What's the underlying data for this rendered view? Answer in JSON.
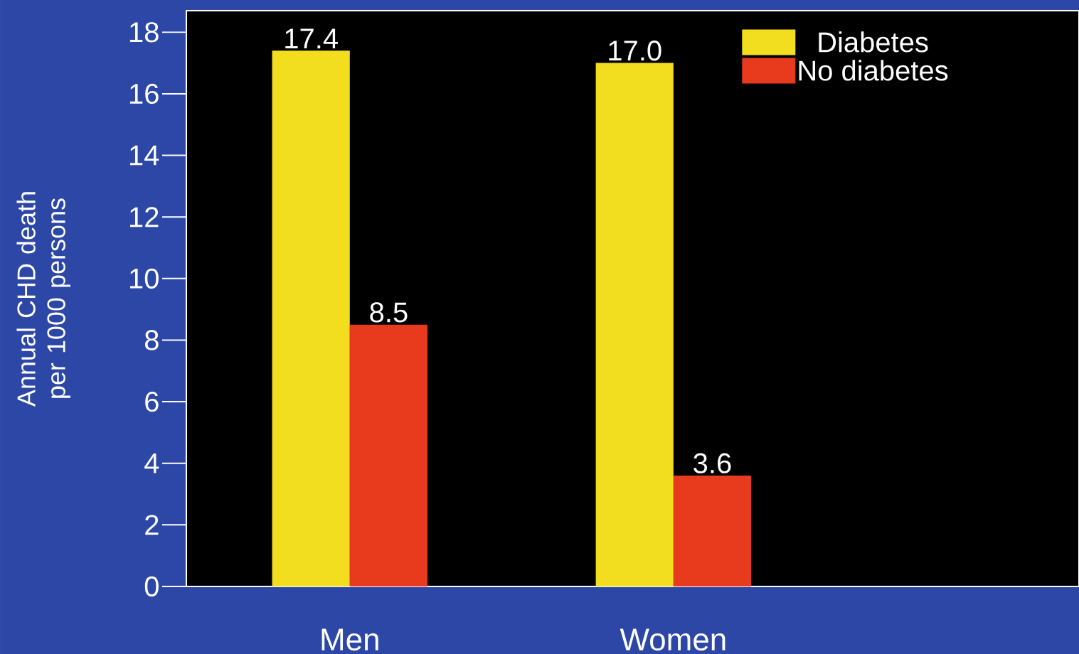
{
  "chart_data": {
    "type": "bar",
    "ylabel": "Annual CHD death per 1000 persons",
    "categories": [
      "Men",
      "Women"
    ],
    "series": [
      {
        "name": "Diabetes",
        "color": "#f2dd1e",
        "values": [
          17.4,
          17.0
        ],
        "value_labels": [
          "17.4",
          "17.0"
        ]
      },
      {
        "name": "No diabetes",
        "color": "#e83a1c",
        "values": [
          8.5,
          3.6
        ],
        "value_labels": [
          "8.5",
          "3.6"
        ]
      }
    ],
    "ylim": [
      0,
      18.7
    ],
    "yticks": [
      0,
      2,
      4,
      6,
      8,
      10,
      12,
      14,
      16,
      18
    ],
    "legend": "top right"
  }
}
